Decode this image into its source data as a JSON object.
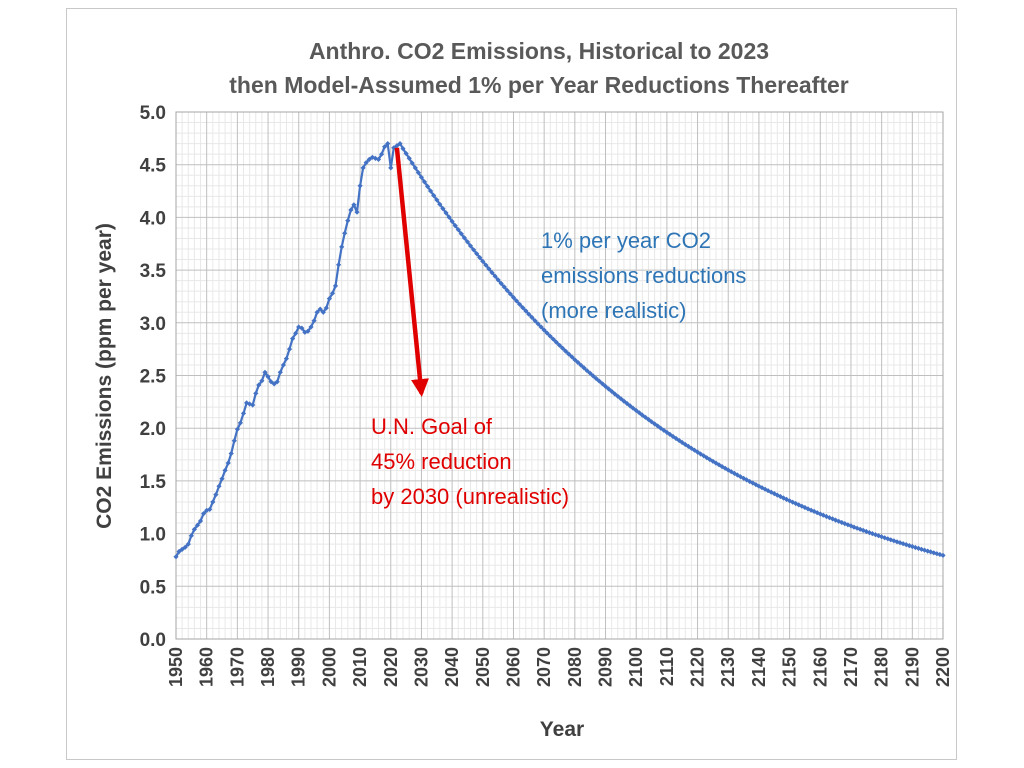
{
  "chart_data": {
    "type": "line",
    "title": [
      "Anthro. CO2 Emissions, Historical to 2023",
      "then Model-Assumed 1% per Year Reductions Thereafter"
    ],
    "xlabel": "Year",
    "ylabel": "CO2 Emissions (ppm per year)",
    "xlim": [
      1950,
      2200
    ],
    "ylim": [
      0,
      5
    ],
    "x_ticks": [
      "1950",
      "1960",
      "1970",
      "1980",
      "1990",
      "2000",
      "2010",
      "2020",
      "2030",
      "2040",
      "2050",
      "2060",
      "2070",
      "2080",
      "2090",
      "2100",
      "2110",
      "2120",
      "2130",
      "2140",
      "2150",
      "2160",
      "2170",
      "2180",
      "2190",
      "2200"
    ],
    "y_ticks": [
      "0.0",
      "0.5",
      "1.0",
      "1.5",
      "2.0",
      "2.5",
      "3.0",
      "3.5",
      "4.0",
      "4.5",
      "5.0"
    ],
    "grid": true,
    "series": [
      {
        "color": "#4472c4",
        "historical": {
          "x": [
            1950,
            1951,
            1952,
            1953,
            1954,
            1955,
            1956,
            1957,
            1958,
            1959,
            1960,
            1961,
            1962,
            1963,
            1964,
            1965,
            1966,
            1967,
            1968,
            1969,
            1970,
            1971,
            1972,
            1973,
            1974,
            1975,
            1976,
            1977,
            1978,
            1979,
            1980,
            1981,
            1982,
            1983,
            1984,
            1985,
            1986,
            1987,
            1988,
            1989,
            1990,
            1991,
            1992,
            1993,
            1994,
            1995,
            1996,
            1997,
            1998,
            1999,
            2000,
            2001,
            2002,
            2003,
            2004,
            2005,
            2006,
            2007,
            2008,
            2009,
            2010,
            2011,
            2012,
            2013,
            2014,
            2015,
            2016,
            2017,
            2018,
            2019,
            2020,
            2021,
            2022,
            2023
          ],
          "y": [
            0.78,
            0.83,
            0.85,
            0.87,
            0.9,
            0.98,
            1.04,
            1.08,
            1.12,
            1.19,
            1.22,
            1.23,
            1.3,
            1.37,
            1.45,
            1.52,
            1.6,
            1.67,
            1.76,
            1.88,
            1.99,
            2.05,
            2.14,
            2.24,
            2.23,
            2.22,
            2.33,
            2.41,
            2.45,
            2.53,
            2.49,
            2.44,
            2.42,
            2.44,
            2.53,
            2.6,
            2.66,
            2.75,
            2.85,
            2.9,
            2.96,
            2.95,
            2.91,
            2.92,
            2.96,
            3.02,
            3.1,
            3.13,
            3.1,
            3.14,
            3.23,
            3.28,
            3.35,
            3.55,
            3.72,
            3.85,
            3.97,
            4.07,
            4.12,
            4.05,
            4.3,
            4.47,
            4.52,
            4.55,
            4.57,
            4.56,
            4.55,
            4.6,
            4.67,
            4.7,
            4.47,
            4.66,
            4.68,
            4.7
          ]
        },
        "projection": {
          "start_year": 2023,
          "end_year": 2200,
          "start_value": 4.7,
          "annual_reduction": 0.01
        }
      }
    ],
    "annotations": [
      {
        "lines": [
          "1% per year CO2",
          "emissions reductions",
          "(more realistic)"
        ],
        "color": "#2e75b6"
      },
      {
        "lines": [
          "U.N. Goal of",
          "45% reduction",
          "by 2030 (unrealistic)"
        ],
        "color": "#e00000",
        "arrow": {
          "from": [
            2022,
            4.66
          ],
          "to": [
            2030,
            2.33
          ]
        }
      }
    ]
  }
}
